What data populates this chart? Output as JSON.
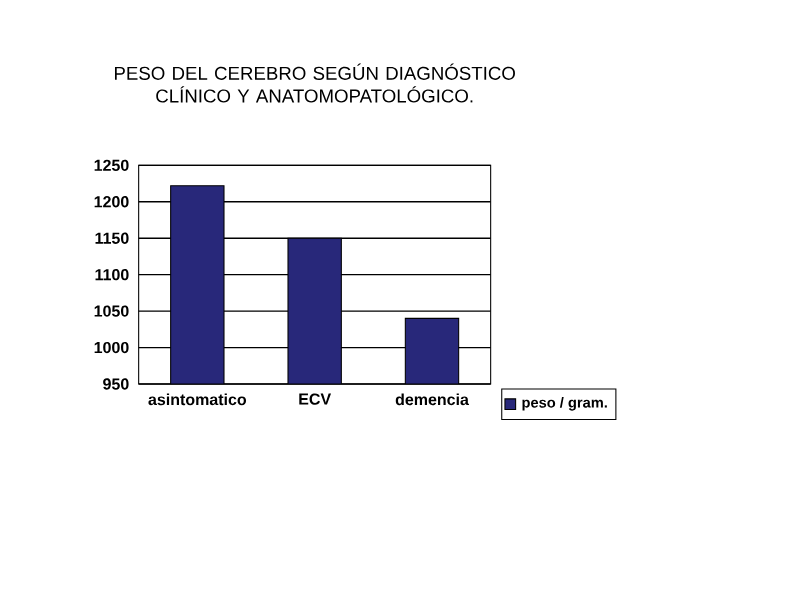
{
  "chart_data": {
    "type": "bar",
    "title": "PESO DEL CEREBRO SEGÚN DIAGNÓSTICO CLÍNICO Y ANATOMOPATOLÓGICO.",
    "categories": [
      "asintomatico",
      "ECV",
      "demencia"
    ],
    "series": [
      {
        "name": "peso / gram.",
        "color": "#28287a",
        "values": [
          1222,
          1150,
          1040
        ]
      }
    ],
    "ylim": [
      950,
      1250
    ],
    "yticks": [
      950,
      1000,
      1050,
      1100,
      1150,
      1200,
      1250
    ],
    "grid": "y",
    "legend": "bottom right"
  }
}
